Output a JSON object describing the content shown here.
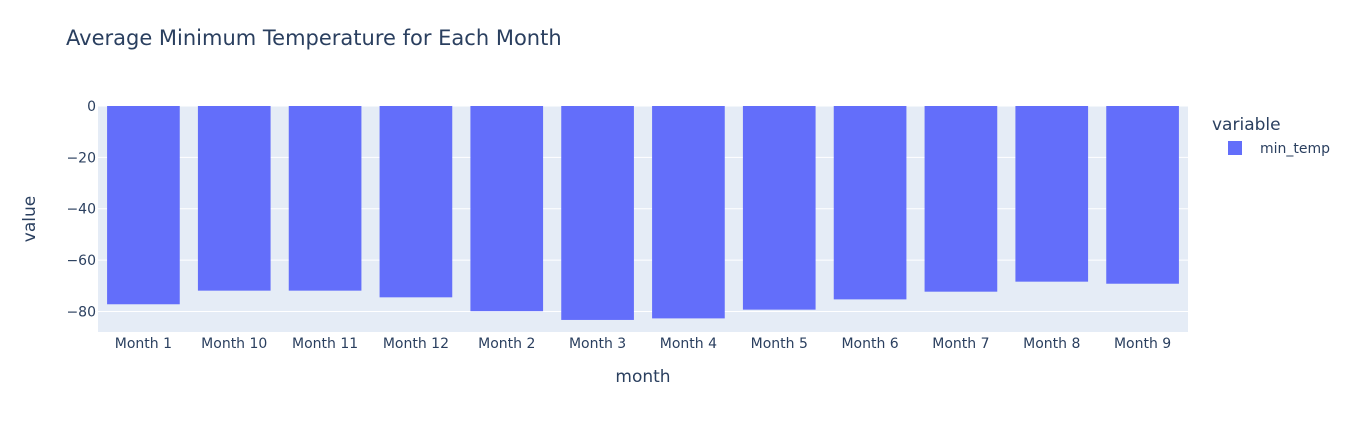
{
  "chart_data": {
    "type": "bar",
    "title": "Average Minimum Temperature for Each Month",
    "xlabel": "month",
    "ylabel": "value",
    "categories": [
      "Month 1",
      "Month 10",
      "Month 11",
      "Month 12",
      "Month 2",
      "Month 3",
      "Month 4",
      "Month 5",
      "Month 6",
      "Month 7",
      "Month 8",
      "Month 9"
    ],
    "series": [
      {
        "name": "min_temp",
        "values": [
          -77.2,
          -71.9,
          -71.9,
          -74.5,
          -79.9,
          -83.3,
          -82.7,
          -79.3,
          -75.3,
          -72.3,
          -68.4,
          -69.2
        ]
      }
    ],
    "ylim": [
      -88,
      0
    ],
    "yticks": [
      0,
      -20,
      -40,
      -60,
      -80
    ],
    "ytick_labels": [
      "0",
      "−20",
      "−40",
      "−60",
      "−80"
    ],
    "legend_title": "variable",
    "legend_position": "right",
    "grid": true,
    "colors": {
      "bar": "#636efa",
      "plot_bg": "#e5ecf6",
      "grid": "#ffffff",
      "text": "#2a3f5f"
    }
  }
}
